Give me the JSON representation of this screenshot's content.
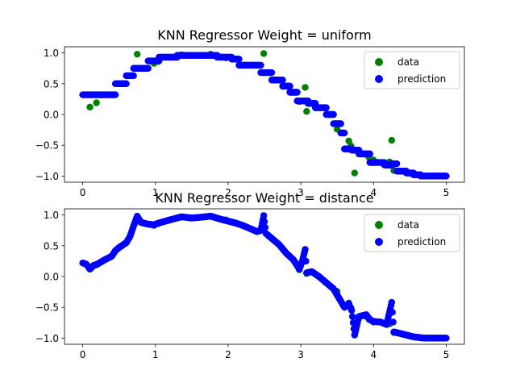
{
  "chart_data": [
    {
      "type": "scatter",
      "title": "KNN Regressor Weight = uniform",
      "xlim": [
        -0.25,
        5.25
      ],
      "ylim": [
        -1.1,
        1.1
      ],
      "xticks": [
        0,
        1,
        2,
        3,
        4,
        5
      ],
      "yticks": [
        -1.0,
        -0.5,
        0.0,
        0.5,
        1.0
      ],
      "xtick_labels": [
        "0",
        "1",
        "2",
        "3",
        "4",
        "5"
      ],
      "ytick_labels": [
        "−1.0",
        "−0.5",
        "0.0",
        "0.5",
        "1.0"
      ],
      "legend": {
        "placement": "upper right",
        "entries": [
          "data",
          "prediction"
        ]
      },
      "colors": {
        "data": "#008000",
        "prediction": "#0000ff"
      },
      "series": [
        {
          "name": "data",
          "points": [
            [
              0.1,
              0.12
            ],
            [
              0.19,
              0.19
            ],
            [
              0.75,
              0.98
            ],
            [
              0.98,
              0.83
            ],
            [
              1.04,
              0.86
            ],
            [
              1.36,
              0.97
            ],
            [
              1.76,
              0.98
            ],
            [
              1.97,
              0.92
            ],
            [
              2.49,
              0.99
            ],
            [
              2.98,
              0.21
            ],
            [
              3.06,
              0.44
            ],
            [
              3.08,
              0.05
            ],
            [
              3.5,
              -0.24
            ],
            [
              3.66,
              -0.43
            ],
            [
              3.69,
              -0.51
            ],
            [
              3.74,
              -0.95
            ],
            [
              3.9,
              -0.65
            ],
            [
              3.94,
              -0.7
            ],
            [
              4.0,
              -0.74
            ],
            [
              4.22,
              -0.77
            ],
            [
              4.25,
              -0.42
            ],
            [
              4.28,
              -0.91
            ]
          ]
        },
        {
          "name": "prediction",
          "segments": [
            [
              0.0,
              0.22,
              0.32
            ],
            [
              0.22,
              0.45,
              0.32
            ],
            [
              0.45,
              0.6,
              0.5
            ],
            [
              0.6,
              0.7,
              0.63
            ],
            [
              0.7,
              0.9,
              0.75
            ],
            [
              0.9,
              1.05,
              0.87
            ],
            [
              1.05,
              1.3,
              0.93
            ],
            [
              1.3,
              1.85,
              0.96
            ],
            [
              1.85,
              2.05,
              0.93
            ],
            [
              2.05,
              2.15,
              0.9
            ],
            [
              2.15,
              2.45,
              0.8
            ],
            [
              2.45,
              2.6,
              0.68
            ],
            [
              2.6,
              2.75,
              0.56
            ],
            [
              2.75,
              2.85,
              0.46
            ],
            [
              2.85,
              2.95,
              0.36
            ],
            [
              2.95,
              3.1,
              0.22
            ],
            [
              3.1,
              3.2,
              0.18
            ],
            [
              3.2,
              3.35,
              0.11
            ],
            [
              3.35,
              3.45,
              0.0
            ],
            [
              3.45,
              3.55,
              -0.15
            ],
            [
              3.55,
              3.6,
              -0.3
            ],
            [
              3.6,
              3.7,
              -0.56
            ],
            [
              3.7,
              3.8,
              -0.58
            ],
            [
              3.8,
              3.95,
              -0.64
            ],
            [
              3.95,
              4.15,
              -0.78
            ],
            [
              4.15,
              4.25,
              -0.82
            ],
            [
              4.25,
              4.32,
              -0.8
            ],
            [
              4.32,
              4.45,
              -0.92
            ],
            [
              4.45,
              4.55,
              -0.95
            ],
            [
              4.55,
              4.65,
              -0.98
            ],
            [
              4.65,
              5.0,
              -1.0
            ]
          ]
        }
      ]
    },
    {
      "type": "scatter",
      "title": "KNN Regressor Weight = distance",
      "xlim": [
        -0.25,
        5.25
      ],
      "ylim": [
        -1.1,
        1.1
      ],
      "xticks": [
        0,
        1,
        2,
        3,
        4,
        5
      ],
      "yticks": [
        -1.0,
        -0.5,
        0.0,
        0.5,
        1.0
      ],
      "xtick_labels": [
        "0",
        "1",
        "2",
        "3",
        "4",
        "5"
      ],
      "ytick_labels": [
        "−1.0",
        "−0.5",
        "0.0",
        "0.5",
        "1.0"
      ],
      "legend": {
        "placement": "upper right",
        "entries": [
          "data",
          "prediction"
        ]
      },
      "colors": {
        "data": "#008000",
        "prediction": "#0000ff"
      },
      "series": [
        {
          "name": "data",
          "points": [
            [
              0.1,
              0.12
            ],
            [
              0.19,
              0.19
            ],
            [
              0.75,
              0.98
            ],
            [
              0.98,
              0.83
            ],
            [
              1.04,
              0.86
            ],
            [
              1.36,
              0.97
            ],
            [
              1.76,
              0.98
            ],
            [
              1.97,
              0.92
            ],
            [
              2.49,
              0.99
            ],
            [
              2.98,
              0.11
            ],
            [
              3.06,
              0.44
            ],
            [
              3.08,
              0.05
            ],
            [
              3.5,
              -0.24
            ],
            [
              3.66,
              -0.43
            ],
            [
              3.69,
              -0.51
            ],
            [
              3.74,
              -0.95
            ],
            [
              3.9,
              -0.65
            ],
            [
              3.94,
              -0.7
            ],
            [
              4.0,
              -0.74
            ],
            [
              4.22,
              -0.77
            ],
            [
              4.25,
              -0.42
            ],
            [
              4.28,
              -0.91
            ]
          ]
        },
        {
          "name": "prediction",
          "curve": [
            [
              0.0,
              0.22
            ],
            [
              0.05,
              0.2
            ],
            [
              0.1,
              0.12
            ],
            [
              0.15,
              0.18
            ],
            [
              0.2,
              0.2
            ],
            [
              0.3,
              0.27
            ],
            [
              0.4,
              0.33
            ],
            [
              0.45,
              0.42
            ],
            [
              0.5,
              0.47
            ],
            [
              0.6,
              0.55
            ],
            [
              0.65,
              0.65
            ],
            [
              0.7,
              0.82
            ],
            [
              0.75,
              0.98
            ],
            [
              0.8,
              0.88
            ],
            [
              0.9,
              0.85
            ],
            [
              0.98,
              0.84
            ],
            [
              1.05,
              0.87
            ],
            [
              1.2,
              0.92
            ],
            [
              1.36,
              0.97
            ],
            [
              1.5,
              0.95
            ],
            [
              1.6,
              0.96
            ],
            [
              1.76,
              0.98
            ],
            [
              1.9,
              0.93
            ],
            [
              2.0,
              0.9
            ],
            [
              2.1,
              0.87
            ],
            [
              2.2,
              0.83
            ],
            [
              2.3,
              0.78
            ],
            [
              2.4,
              0.73
            ],
            [
              2.45,
              0.75
            ],
            [
              2.49,
              0.99
            ],
            [
              2.52,
              0.7
            ],
            [
              2.6,
              0.62
            ],
            [
              2.7,
              0.52
            ],
            [
              2.8,
              0.38
            ],
            [
              2.9,
              0.27
            ],
            [
              2.98,
              0.12
            ],
            [
              3.02,
              0.25
            ],
            [
              3.06,
              0.44
            ],
            [
              3.08,
              0.06
            ],
            [
              3.15,
              0.08
            ],
            [
              3.25,
              0.0
            ],
            [
              3.35,
              -0.1
            ],
            [
              3.45,
              -0.2
            ],
            [
              3.55,
              -0.4
            ],
            [
              3.6,
              -0.5
            ],
            [
              3.66,
              -0.44
            ],
            [
              3.7,
              -0.55
            ],
            [
              3.74,
              -0.95
            ],
            [
              3.8,
              -0.65
            ],
            [
              3.9,
              -0.62
            ],
            [
              3.95,
              -0.7
            ],
            [
              4.0,
              -0.73
            ],
            [
              4.1,
              -0.74
            ],
            [
              4.18,
              -0.78
            ],
            [
              4.25,
              -0.42
            ],
            [
              4.28,
              -0.9
            ],
            [
              4.35,
              -0.92
            ],
            [
              4.45,
              -0.95
            ],
            [
              4.55,
              -0.98
            ],
            [
              4.7,
              -1.0
            ],
            [
              5.0,
              -1.0
            ]
          ]
        }
      ]
    }
  ]
}
